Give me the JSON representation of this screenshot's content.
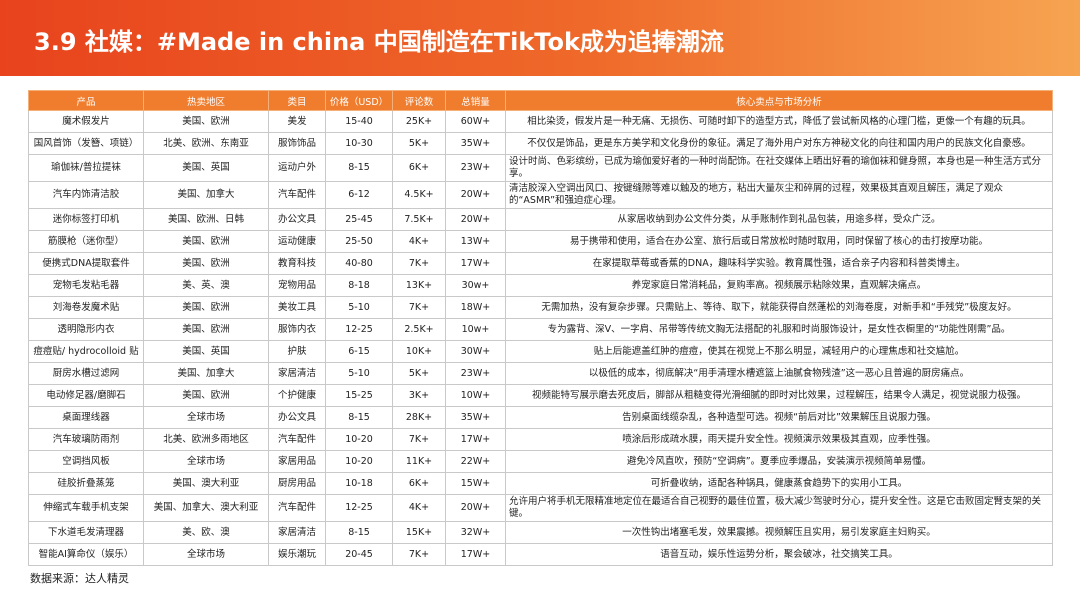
{
  "header": {
    "title": "3.9 社媒：#Made in china 中国制造在TikTok成为追捧潮流"
  },
  "table": {
    "columns": [
      "产品",
      "热卖地区",
      "类目",
      "价格（USD）",
      "评论数",
      "总销量",
      "核心卖点与市场分析"
    ],
    "rows": [
      [
        "魔术假发片",
        "美国、欧洲",
        "美发",
        "15-40",
        "25K+",
        "60W+",
        "相比染烫，假发片是一种无痛、无损伤、可随时卸下的造型方式，降低了尝试新风格的心理门槛，更像一个有趣的玩具。"
      ],
      [
        "国风首饰（发簪、项链）",
        "北美、欧洲、东南亚",
        "服饰饰品",
        "10-30",
        "5K+",
        "35W+",
        "不仅仅是饰品，更是东方美学和文化身份的象征。满足了海外用户对东方神秘文化的向往和国内用户的民族文化自豪感。"
      ],
      [
        "瑜伽袜/普拉提袜",
        "美国、英国",
        "运动户外",
        "8-15",
        "6K+",
        "23W+",
        "设计时尚、色彩缤纷，已成为瑜伽爱好者的一种时尚配饰。在社交媒体上晒出好看的瑜伽袜和健身照，本身也是一种生活方式分享。"
      ],
      [
        "汽车内饰清洁胶",
        "美国、加拿大",
        "汽车配件",
        "6-12",
        "4.5K+",
        "20W+",
        "清洁胶深入空调出风口、按键缝隙等难以触及的地方，粘出大量灰尘和碎屑的过程，效果极其直观且解压，满足了观众的“ASMR”和强迫症心理。"
      ],
      [
        "迷你标签打印机",
        "美国、欧洲、日韩",
        "办公文具",
        "25-45",
        "7.5K+",
        "20W+",
        "从家居收纳到办公文件分类，从手账制作到礼品包装，用途多样，受众广泛。"
      ],
      [
        "筋膜枪（迷你型）",
        "美国、欧洲",
        "运动健康",
        "25-50",
        "4K+",
        "13W+",
        "易于携带和使用，适合在办公室、旅行后或日常放松时随时取用，同时保留了核心的击打按摩功能。"
      ],
      [
        "便携式DNA提取套件",
        "美国、欧洲",
        "教育科技",
        "40-80",
        "7K+",
        "17W+",
        "在家提取草莓或香蕉的DNA，趣味科学实验。教育属性强，适合亲子内容和科普类博主。"
      ],
      [
        "宠物毛发粘毛器",
        "美、英、澳",
        "宠物用品",
        "8-18",
        "13K+",
        "30w+",
        "养宠家庭日常消耗品，复购率高。视频展示粘除效果，直观解决痛点。"
      ],
      [
        "刘海卷发魔术贴",
        "美国、欧洲",
        "美妆工具",
        "5-10",
        "7K+",
        "18W+",
        "无需加热，没有复杂步骤。只需贴上、等待、取下，就能获得自然蓬松的刘海卷度，对新手和“手残党”极度友好。"
      ],
      [
        "透明隐形内衣",
        "美国、欧洲",
        "服饰内衣",
        "12-25",
        "2.5K+",
        "10w+",
        "专为露背、深V、一字肩、吊带等传统文胸无法搭配的礼服和时尚服饰设计，是女性衣橱里的“功能性刚需”品。"
      ],
      [
        "痘痘贴/ hydrocolloid 贴",
        "美国、英国",
        "护肤",
        "6-15",
        "10K+",
        "30W+",
        "贴上后能遮盖红肿的痘痘，使其在视觉上不那么明显，减轻用户的心理焦虑和社交尴尬。"
      ],
      [
        "厨房水槽过滤网",
        "美国、加拿大",
        "家居清洁",
        "5-10",
        "5K+",
        "23W+",
        "以极低的成本，彻底解决“用手清理水槽遮篮上油腻食物残渣”这一恶心且普遍的厨房痛点。"
      ],
      [
        "电动修足器/磨脚石",
        "美国、欧洲",
        "个护健康",
        "15-25",
        "3K+",
        "10W+",
        "视频能特写展示磨去死皮后，脚部从粗糙变得光滑细腻的即时对比效果，过程解压，结果令人满足，视觉说服力极强。"
      ],
      [
        "桌面理线器",
        "全球市场",
        "办公文具",
        "8-15",
        "28K+",
        "35W+",
        "告别桌面线缆杂乱，各种造型可选。视频“前后对比”效果解压且说服力强。"
      ],
      [
        "汽车玻璃防雨剂",
        "北美、欧洲多雨地区",
        "汽车配件",
        "10-20",
        "7K+",
        "17W+",
        "喷涂后形成疏水膜，雨天提升安全性。视频演示效果极其直观，应季性强。"
      ],
      [
        "空调挡风板",
        "全球市场",
        "家居用品",
        "10-20",
        "11K+",
        "22W+",
        "避免冷风直吹，预防“空调病”。夏季应季爆品，安装演示视频简单易懂。"
      ],
      [
        "硅胶折叠蒸笼",
        "美国、澳大利亚",
        "厨房用品",
        "10-18",
        "6K+",
        "15W+",
        "可折叠收纳，适配各种锅具，健康蒸食趋势下的实用小工具。"
      ],
      [
        "伸缩式车载手机支架",
        "美国、加拿大、澳大利亚",
        "汽车配件",
        "12-25",
        "4K+",
        "20W+",
        "允许用户将手机无限精准地定位在最适合自己视野的最佳位置，极大减少驾驶时分心，提升安全性。这是它击败固定臂支架的关键。"
      ],
      [
        "下水道毛发清理器",
        "美、欧、澳",
        "家居清洁",
        "8-15",
        "15K+",
        "32W+",
        "一次性钩出堵塞毛发，效果震撼。视频解压且实用，易引发家庭主妇购买。"
      ],
      [
        "智能AI算命仪（娱乐）",
        "全球市场",
        "娱乐潮玩",
        "20-45",
        "7K+",
        "17W+",
        "语音互动，娱乐性运势分析，聚会破冰，社交搞笑工具。"
      ]
    ]
  },
  "footer": {
    "source": "数据来源：达人精灵"
  }
}
